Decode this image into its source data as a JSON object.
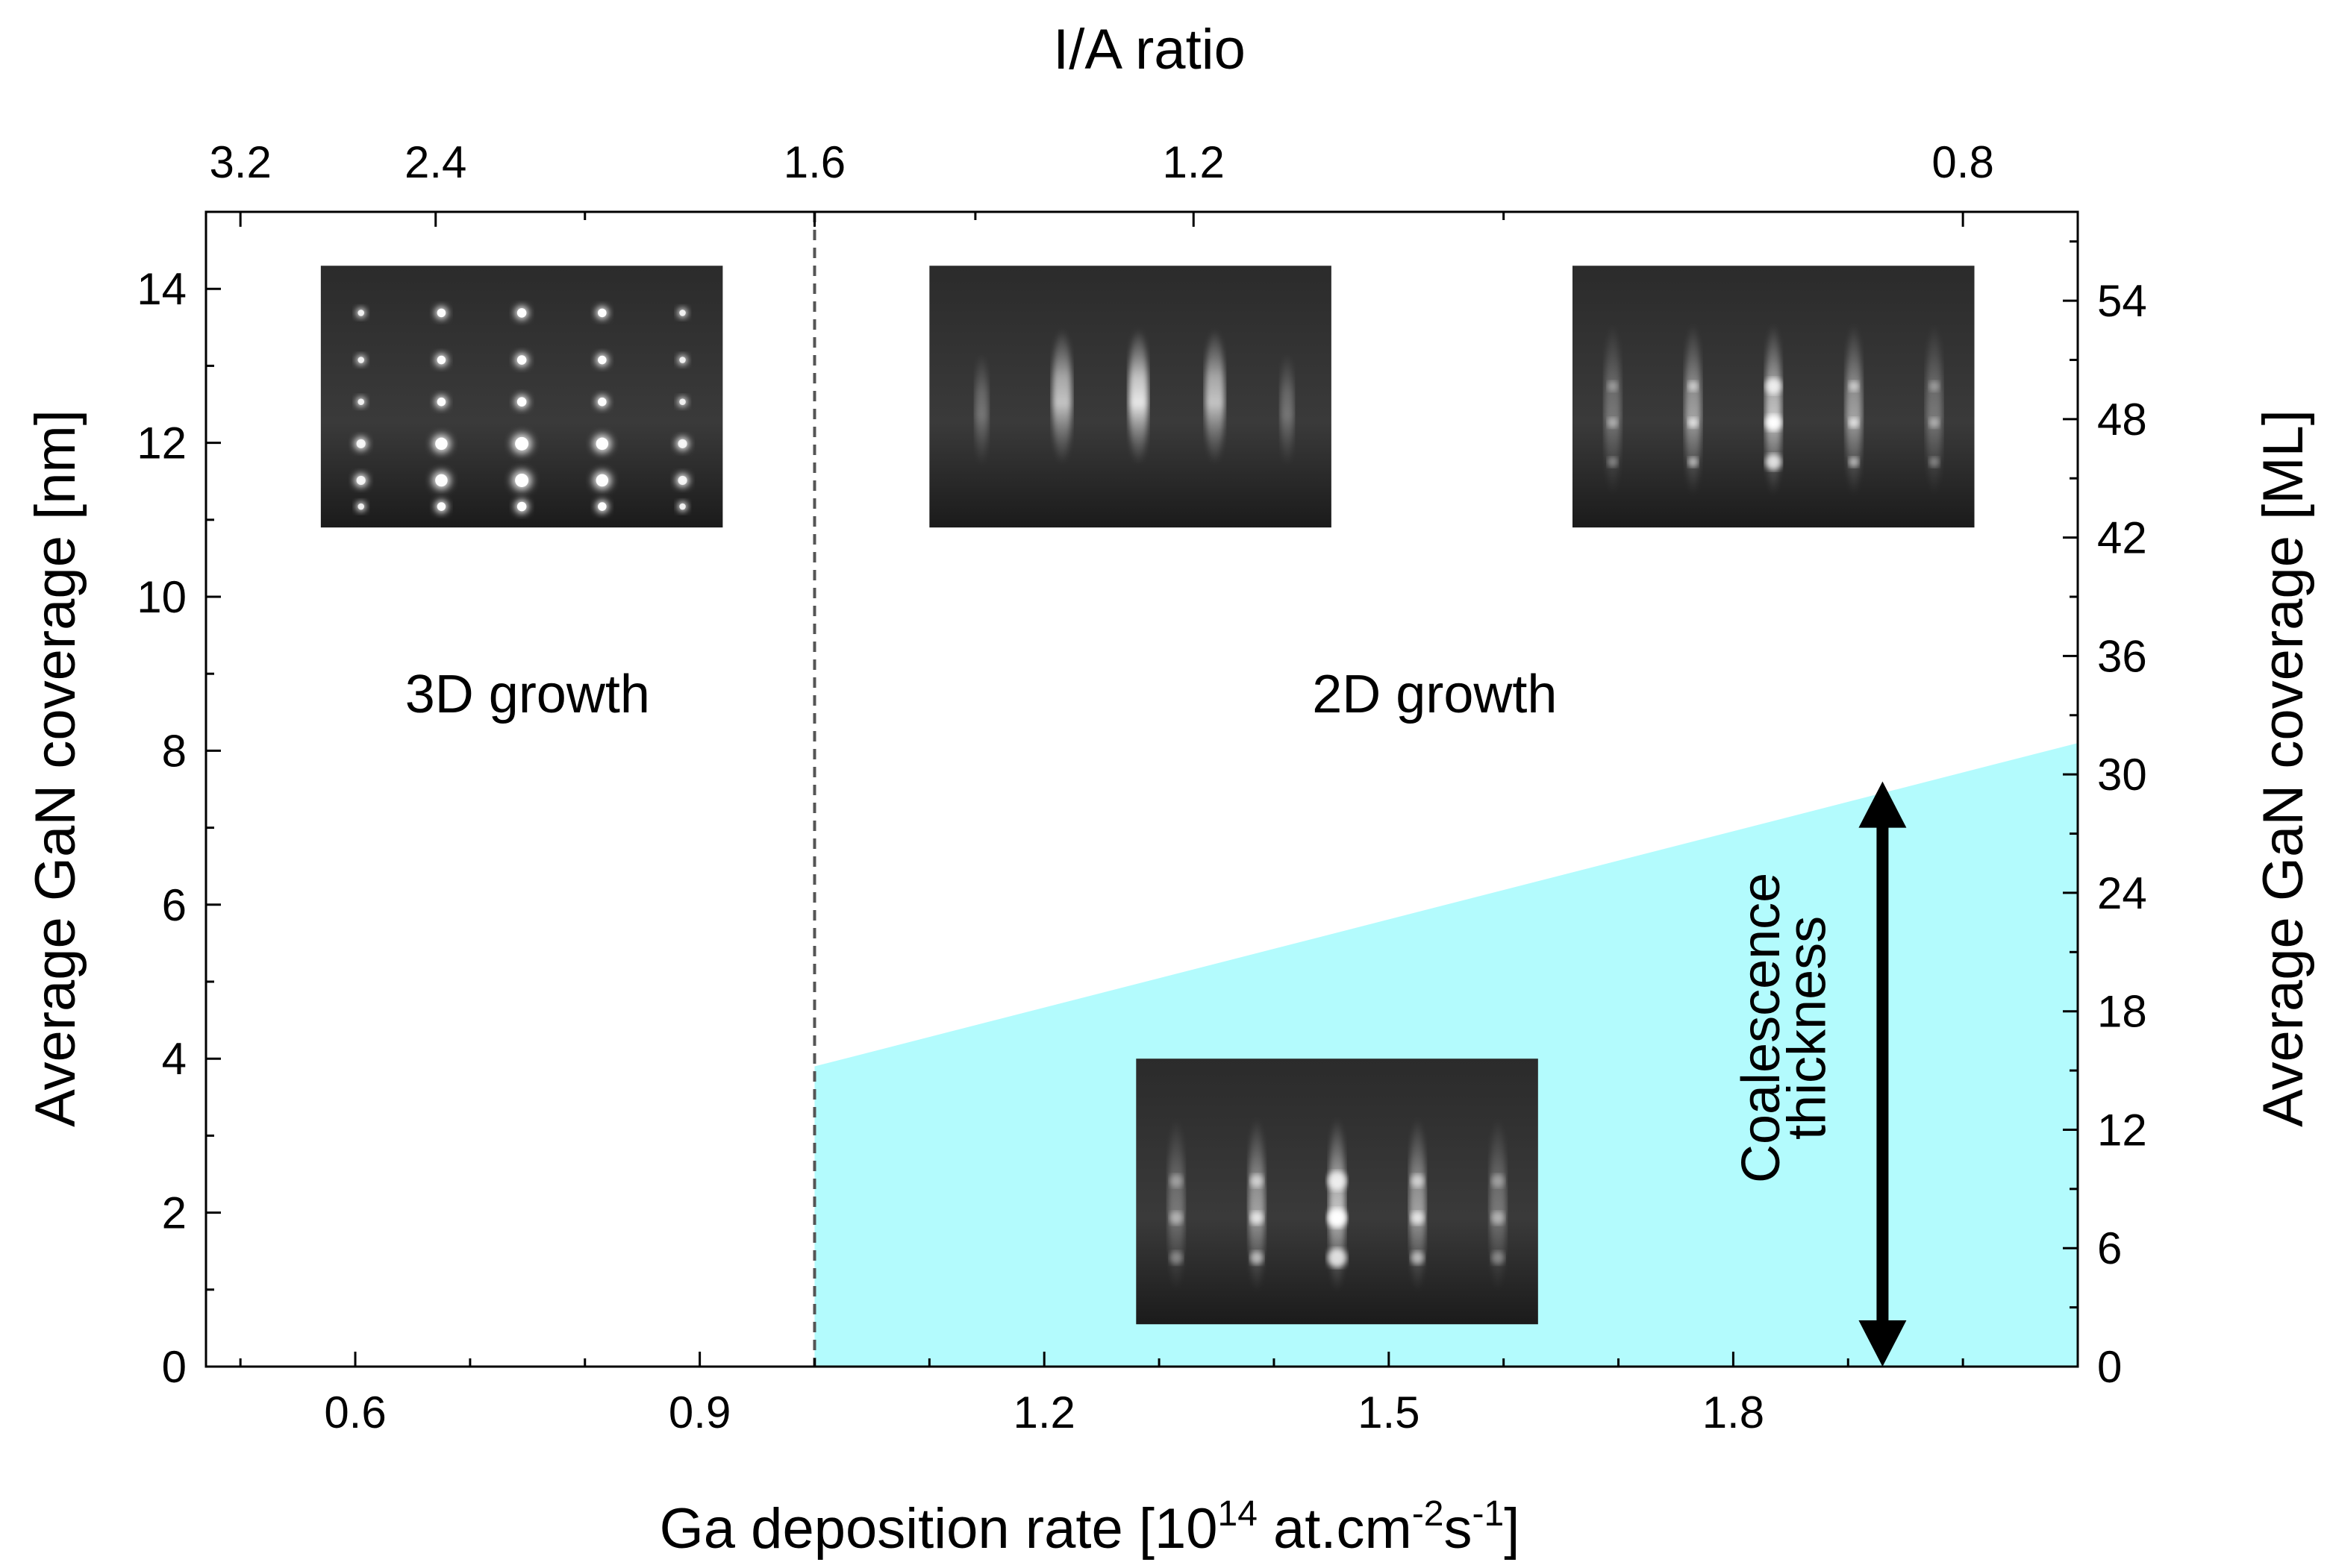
{
  "colors": {
    "background": "#ffffff",
    "axis": "#000000",
    "region_fill": "#b3fbfd",
    "divider": "#555555"
  },
  "chart_data": {
    "type": "area",
    "xlabel_base": "Ga deposition rate [10",
    "xlabel_sup1": "14",
    "xlabel_mid": " at.cm",
    "xlabel_sup2": "-2",
    "xlabel_mid2": "s",
    "xlabel_sup3": "-1",
    "xlabel_end": "]",
    "ylabel": "Average GaN coverage [nm]",
    "ylabel_right": "Average GaN coverage [ML]",
    "top_axis_label": "I/A ratio",
    "xlim": [
      0.47,
      2.1
    ],
    "ylim": [
      0,
      15
    ],
    "ylim_right_ML": [
      0,
      58.5
    ],
    "x_ticks": [
      {
        "value": 0.6,
        "label": "0.6"
      },
      {
        "value": 0.9,
        "label": "0.9"
      },
      {
        "value": 1.2,
        "label": "1.2"
      },
      {
        "value": 1.5,
        "label": "1.5"
      },
      {
        "value": 1.8,
        "label": "1.8"
      }
    ],
    "x_minor_ticks": [
      0.5,
      0.7,
      0.8,
      1.0,
      1.1,
      1.3,
      1.4,
      1.6,
      1.7,
      1.9,
      2.0
    ],
    "y_ticks": [
      {
        "value": 0,
        "label": "0"
      },
      {
        "value": 2,
        "label": "2"
      },
      {
        "value": 4,
        "label": "4"
      },
      {
        "value": 6,
        "label": "6"
      },
      {
        "value": 8,
        "label": "8"
      },
      {
        "value": 10,
        "label": "10"
      },
      {
        "value": 12,
        "label": "12"
      },
      {
        "value": 14,
        "label": "14"
      }
    ],
    "y_minor_ticks": [
      1,
      3,
      5,
      7,
      9,
      11,
      13
    ],
    "y_right_ticks": [
      {
        "value": 0,
        "label": "0"
      },
      {
        "value": 6,
        "label": "6"
      },
      {
        "value": 12,
        "label": "12"
      },
      {
        "value": 18,
        "label": "18"
      },
      {
        "value": 24,
        "label": "24"
      },
      {
        "value": 30,
        "label": "30"
      },
      {
        "value": 36,
        "label": "36"
      },
      {
        "value": 42,
        "label": "42"
      },
      {
        "value": 48,
        "label": "48"
      },
      {
        "value": 54,
        "label": "54"
      }
    ],
    "y_right_minor_ticks": [
      3,
      9,
      15,
      21,
      27,
      33,
      39,
      45,
      51,
      57
    ],
    "top_ticks": [
      {
        "x": 0.5,
        "label": "3.2"
      },
      {
        "x": 0.67,
        "label": "2.4"
      },
      {
        "x": 1.0,
        "label": "1.6"
      },
      {
        "x": 1.33,
        "label": "1.2"
      },
      {
        "x": 2.0,
        "label": "0.8"
      }
    ],
    "top_minor_ticks": [
      0.8,
      1.14,
      1.6
    ],
    "divider_x": 1.0,
    "coalescence_region": {
      "boundary": [
        {
          "x": 1.0,
          "y": 3.9
        },
        {
          "x": 2.1,
          "y": 8.1
        }
      ]
    },
    "coalescence_arrow": {
      "x": 1.93,
      "y_from": 0,
      "y_to": 7.6
    },
    "annotations": [
      {
        "text": "3D growth",
        "x": 0.75,
        "y": 8.5
      },
      {
        "text": "2D growth",
        "x": 1.54,
        "y": 8.5
      },
      {
        "text": "Coalescence",
        "x": 1.84,
        "y": 4.4,
        "rotation": -90
      },
      {
        "text": "thickness",
        "x": 1.88,
        "y": 4.4,
        "rotation": -90
      }
    ],
    "insets": [
      {
        "name": "rheed-3d",
        "x0": 0.57,
        "x1": 0.92,
        "y0": 10.9,
        "y1": 14.3,
        "pattern": "spots"
      },
      {
        "name": "rheed-2d-mid",
        "x0": 1.1,
        "x1": 1.45,
        "y0": 10.9,
        "y1": 14.3,
        "pattern": "streaks"
      },
      {
        "name": "rheed-2d-high",
        "x0": 1.66,
        "x1": 2.01,
        "y0": 10.9,
        "y1": 14.3,
        "pattern": "streak-spots"
      },
      {
        "name": "rheed-coalescence",
        "x0": 1.28,
        "x1": 1.63,
        "y0": 0.55,
        "y1": 4.0,
        "pattern": "spotty-streaks"
      }
    ]
  }
}
